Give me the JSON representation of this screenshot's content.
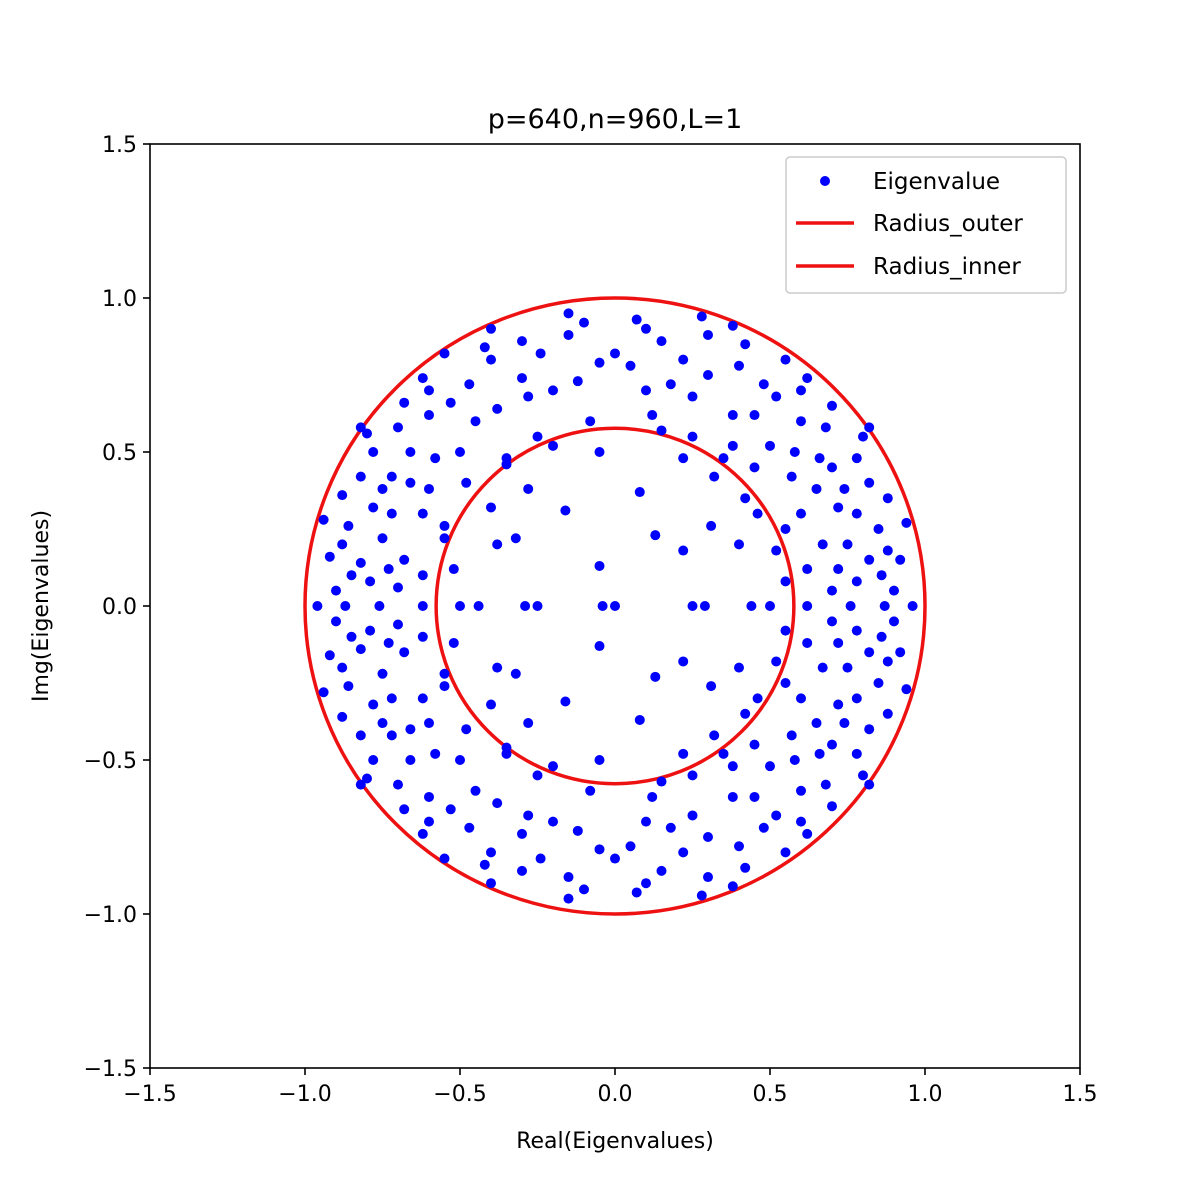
{
  "chart_data": {
    "type": "scatter",
    "title": "p=640,n=960,L=1",
    "xlabel": "Real(Eigenvalues)",
    "ylabel": "Img(Eigenvalues)",
    "xlim": [
      -1.5,
      1.5
    ],
    "ylim": [
      -1.5,
      1.5
    ],
    "xticks": [
      "−1.5",
      "−1.0",
      "−0.5",
      "0.0",
      "0.5",
      "1.0",
      "1.5"
    ],
    "yticks": [
      "1.5",
      "1.0",
      "0.5",
      "0.0",
      "−0.5",
      "−1.0",
      "−1.5"
    ],
    "xtick_values": [
      -1.5,
      -1.0,
      -0.5,
      0.0,
      0.5,
      1.0,
      1.5
    ],
    "ytick_values": [
      1.5,
      1.0,
      0.5,
      0.0,
      -0.5,
      -1.0,
      -1.5
    ],
    "grid": false,
    "legend_position": "top-right",
    "series": [
      {
        "name": "Eigenvalue",
        "kind": "points",
        "color": "#0000ff",
        "points": [
          [
            0.0,
            0.0
          ],
          [
            -0.04,
            0.0
          ],
          [
            0.96,
            0.0
          ],
          [
            -0.96,
            0.0
          ],
          [
            0.25,
            0.0
          ],
          [
            -0.25,
            0.0
          ],
          [
            0.29,
            0.0
          ],
          [
            -0.29,
            0.0
          ],
          [
            0.44,
            0.0
          ],
          [
            -0.44,
            0.0
          ],
          [
            0.5,
            0.0
          ],
          [
            -0.5,
            0.0
          ],
          [
            0.62,
            0.0
          ],
          [
            -0.62,
            0.0
          ],
          [
            0.76,
            0.0
          ],
          [
            -0.76,
            0.0
          ],
          [
            0.87,
            0.0
          ],
          [
            -0.87,
            0.0
          ],
          [
            -0.05,
            0.13
          ],
          [
            -0.05,
            -0.13
          ],
          [
            0.13,
            0.23
          ],
          [
            0.13,
            -0.23
          ],
          [
            0.22,
            0.18
          ],
          [
            0.22,
            -0.18
          ],
          [
            0.31,
            0.26
          ],
          [
            0.31,
            -0.26
          ],
          [
            -0.16,
            0.31
          ],
          [
            -0.16,
            -0.31
          ],
          [
            0.08,
            0.37
          ],
          [
            0.08,
            -0.37
          ],
          [
            0.4,
            0.2
          ],
          [
            0.4,
            -0.2
          ],
          [
            -0.32,
            0.22
          ],
          [
            -0.32,
            -0.22
          ],
          [
            -0.38,
            0.2
          ],
          [
            -0.38,
            -0.2
          ],
          [
            0.46,
            0.3
          ],
          [
            0.46,
            -0.3
          ],
          [
            -0.2,
            0.52
          ],
          [
            -0.2,
            -0.52
          ],
          [
            0.15,
            0.57
          ],
          [
            0.15,
            -0.57
          ],
          [
            -0.05,
            0.5
          ],
          [
            -0.05,
            -0.5
          ],
          [
            0.22,
            0.48
          ],
          [
            0.22,
            -0.48
          ],
          [
            0.52,
            0.18
          ],
          [
            0.52,
            -0.18
          ],
          [
            0.55,
            0.08
          ],
          [
            0.55,
            -0.08
          ],
          [
            -0.52,
            0.12
          ],
          [
            -0.52,
            -0.12
          ],
          [
            -0.55,
            0.22
          ],
          [
            -0.55,
            -0.22
          ],
          [
            0.38,
            0.52
          ],
          [
            0.38,
            -0.52
          ],
          [
            -0.35,
            0.48
          ],
          [
            -0.35,
            -0.48
          ],
          [
            0.57,
            0.42
          ],
          [
            0.57,
            -0.42
          ],
          [
            -0.6,
            0.38
          ],
          [
            -0.6,
            -0.38
          ],
          [
            0.67,
            0.2
          ],
          [
            0.67,
            -0.2
          ],
          [
            -0.68,
            0.15
          ],
          [
            -0.68,
            -0.15
          ],
          [
            0.6,
            0.3
          ],
          [
            0.6,
            -0.3
          ],
          [
            -0.62,
            0.3
          ],
          [
            -0.62,
            -0.3
          ],
          [
            0.45,
            0.62
          ],
          [
            0.45,
            -0.62
          ],
          [
            -0.45,
            0.6
          ],
          [
            -0.45,
            -0.6
          ],
          [
            0.1,
            0.7
          ],
          [
            0.1,
            -0.7
          ],
          [
            -0.12,
            0.73
          ],
          [
            -0.12,
            -0.73
          ],
          [
            0.25,
            0.68
          ],
          [
            0.25,
            -0.68
          ],
          [
            -0.28,
            0.68
          ],
          [
            -0.28,
            -0.68
          ],
          [
            0.7,
            0.45
          ],
          [
            0.7,
            -0.45
          ],
          [
            -0.72,
            0.42
          ],
          [
            -0.72,
            -0.42
          ],
          [
            0.78,
            0.3
          ],
          [
            0.78,
            -0.3
          ],
          [
            -0.78,
            0.32
          ],
          [
            -0.78,
            -0.32
          ],
          [
            0.82,
            0.15
          ],
          [
            0.82,
            -0.15
          ],
          [
            -0.82,
            0.14
          ],
          [
            -0.82,
            -0.14
          ],
          [
            0.6,
            0.6
          ],
          [
            0.6,
            -0.6
          ],
          [
            -0.6,
            0.62
          ],
          [
            -0.6,
            -0.62
          ],
          [
            0.4,
            0.78
          ],
          [
            0.4,
            -0.78
          ],
          [
            -0.4,
            0.8
          ],
          [
            -0.4,
            -0.8
          ],
          [
            0.15,
            0.86
          ],
          [
            0.15,
            -0.86
          ],
          [
            -0.15,
            0.88
          ],
          [
            -0.15,
            -0.88
          ],
          [
            0.0,
            0.82
          ],
          [
            0.0,
            -0.82
          ],
          [
            0.88,
            0.35
          ],
          [
            0.88,
            -0.35
          ],
          [
            -0.88,
            0.36
          ],
          [
            -0.88,
            -0.36
          ],
          [
            0.92,
            0.15
          ],
          [
            0.92,
            -0.15
          ],
          [
            -0.92,
            0.16
          ],
          [
            -0.92,
            -0.16
          ],
          [
            0.8,
            0.55
          ],
          [
            0.8,
            -0.55
          ],
          [
            -0.8,
            0.56
          ],
          [
            -0.8,
            -0.56
          ],
          [
            0.62,
            0.74
          ],
          [
            0.62,
            -0.74
          ],
          [
            -0.62,
            0.74
          ],
          [
            -0.62,
            -0.74
          ],
          [
            0.38,
            0.91
          ],
          [
            0.38,
            -0.91
          ],
          [
            -0.4,
            0.9
          ],
          [
            -0.4,
            -0.9
          ],
          [
            0.28,
            0.94
          ],
          [
            0.28,
            -0.94
          ],
          [
            -0.15,
            0.95
          ],
          [
            -0.15,
            -0.95
          ],
          [
            0.07,
            0.93
          ],
          [
            0.07,
            -0.93
          ],
          [
            0.32,
            0.42
          ],
          [
            0.32,
            -0.42
          ],
          [
            -0.28,
            0.38
          ],
          [
            -0.28,
            -0.38
          ],
          [
            0.45,
            0.45
          ],
          [
            0.45,
            -0.45
          ],
          [
            -0.48,
            0.4
          ],
          [
            -0.48,
            -0.4
          ],
          [
            0.5,
            0.52
          ],
          [
            0.5,
            -0.52
          ],
          [
            -0.5,
            0.5
          ],
          [
            -0.5,
            -0.5
          ],
          [
            0.12,
            0.62
          ],
          [
            0.12,
            -0.62
          ],
          [
            -0.08,
            0.6
          ],
          [
            -0.08,
            -0.6
          ],
          [
            0.62,
            0.12
          ],
          [
            0.62,
            -0.12
          ],
          [
            -0.62,
            0.1
          ],
          [
            -0.62,
            -0.1
          ],
          [
            0.7,
            0.05
          ],
          [
            0.7,
            -0.05
          ],
          [
            -0.7,
            0.06
          ],
          [
            -0.7,
            -0.06
          ],
          [
            0.52,
            0.68
          ],
          [
            0.52,
            -0.68
          ],
          [
            -0.53,
            0.66
          ],
          [
            -0.53,
            -0.66
          ],
          [
            0.3,
            0.75
          ],
          [
            0.3,
            -0.75
          ],
          [
            -0.3,
            0.74
          ],
          [
            -0.3,
            -0.74
          ],
          [
            0.72,
            0.32
          ],
          [
            0.72,
            -0.32
          ],
          [
            -0.72,
            0.3
          ],
          [
            -0.72,
            -0.3
          ],
          [
            0.75,
            0.2
          ],
          [
            0.75,
            -0.2
          ],
          [
            -0.75,
            0.22
          ],
          [
            -0.75,
            -0.22
          ],
          [
            0.68,
            0.58
          ],
          [
            0.68,
            -0.58
          ],
          [
            -0.7,
            0.58
          ],
          [
            -0.7,
            -0.58
          ],
          [
            0.22,
            0.8
          ],
          [
            0.22,
            -0.8
          ],
          [
            -0.24,
            0.82
          ],
          [
            -0.24,
            -0.82
          ],
          [
            0.85,
            0.25
          ],
          [
            0.85,
            -0.25
          ],
          [
            -0.86,
            0.26
          ],
          [
            -0.86,
            -0.26
          ],
          [
            0.9,
            0.05
          ],
          [
            0.9,
            -0.05
          ],
          [
            -0.9,
            0.05
          ],
          [
            -0.9,
            -0.05
          ],
          [
            0.78,
            0.48
          ],
          [
            0.78,
            -0.48
          ],
          [
            -0.78,
            0.5
          ],
          [
            -0.78,
            -0.5
          ],
          [
            0.55,
            0.8
          ],
          [
            0.55,
            -0.8
          ],
          [
            -0.55,
            0.82
          ],
          [
            -0.55,
            -0.82
          ],
          [
            0.48,
            0.72
          ],
          [
            0.48,
            -0.72
          ],
          [
            -0.47,
            0.72
          ],
          [
            -0.47,
            -0.72
          ],
          [
            0.05,
            0.78
          ],
          [
            0.05,
            -0.78
          ],
          [
            -0.05,
            0.79
          ],
          [
            -0.05,
            -0.79
          ],
          [
            0.38,
            0.62
          ],
          [
            0.38,
            -0.62
          ],
          [
            -0.38,
            0.64
          ],
          [
            -0.38,
            -0.64
          ],
          [
            0.65,
            0.38
          ],
          [
            0.65,
            -0.38
          ],
          [
            -0.66,
            0.4
          ],
          [
            -0.66,
            -0.4
          ],
          [
            0.58,
            0.5
          ],
          [
            0.58,
            -0.5
          ],
          [
            -0.58,
            0.48
          ],
          [
            -0.58,
            -0.48
          ],
          [
            0.18,
            0.72
          ],
          [
            0.18,
            -0.72
          ],
          [
            -0.2,
            0.7
          ],
          [
            -0.2,
            -0.7
          ],
          [
            0.72,
            0.12
          ],
          [
            0.72,
            -0.12
          ],
          [
            -0.73,
            0.12
          ],
          [
            -0.73,
            -0.12
          ],
          [
            0.82,
            0.4
          ],
          [
            0.82,
            -0.4
          ],
          [
            -0.82,
            0.42
          ],
          [
            -0.82,
            -0.42
          ],
          [
            0.42,
            0.85
          ],
          [
            0.42,
            -0.85
          ],
          [
            -0.42,
            0.84
          ],
          [
            -0.42,
            -0.84
          ],
          [
            0.7,
            0.65
          ],
          [
            0.7,
            -0.65
          ],
          [
            -0.68,
            0.66
          ],
          [
            -0.68,
            -0.66
          ],
          [
            0.3,
            0.88
          ],
          [
            0.3,
            -0.88
          ],
          [
            -0.3,
            0.86
          ],
          [
            -0.3,
            -0.86
          ],
          [
            0.88,
            0.18
          ],
          [
            0.88,
            -0.18
          ],
          [
            -0.88,
            0.2
          ],
          [
            -0.88,
            -0.2
          ],
          [
            0.94,
            0.27
          ],
          [
            0.94,
            -0.27
          ],
          [
            -0.94,
            0.28
          ],
          [
            -0.94,
            -0.28
          ],
          [
            0.42,
            0.35
          ],
          [
            0.42,
            -0.35
          ],
          [
            -0.4,
            0.32
          ],
          [
            -0.4,
            -0.32
          ],
          [
            0.35,
            0.48
          ],
          [
            0.35,
            -0.48
          ],
          [
            -0.35,
            0.46
          ],
          [
            -0.35,
            -0.46
          ],
          [
            0.25,
            0.55
          ],
          [
            0.25,
            -0.55
          ],
          [
            -0.25,
            0.55
          ],
          [
            -0.25,
            -0.55
          ],
          [
            0.55,
            0.25
          ],
          [
            0.55,
            -0.25
          ],
          [
            -0.55,
            0.26
          ],
          [
            -0.55,
            -0.26
          ],
          [
            0.66,
            0.48
          ],
          [
            0.66,
            -0.48
          ],
          [
            -0.66,
            0.5
          ],
          [
            -0.66,
            -0.5
          ],
          [
            0.78,
            0.08
          ],
          [
            0.78,
            -0.08
          ],
          [
            -0.79,
            0.08
          ],
          [
            -0.79,
            -0.08
          ],
          [
            0.1,
            0.9
          ],
          [
            0.1,
            -0.9
          ],
          [
            -0.1,
            0.92
          ],
          [
            -0.1,
            -0.92
          ],
          [
            0.6,
            0.7
          ],
          [
            0.6,
            -0.7
          ],
          [
            -0.6,
            0.7
          ],
          [
            -0.6,
            -0.7
          ],
          [
            0.82,
            0.58
          ],
          [
            0.82,
            -0.58
          ],
          [
            -0.82,
            0.58
          ],
          [
            -0.82,
            -0.58
          ],
          [
            0.74,
            0.38
          ],
          [
            0.74,
            -0.38
          ],
          [
            -0.75,
            0.38
          ],
          [
            -0.75,
            -0.38
          ],
          [
            0.86,
            0.1
          ],
          [
            0.86,
            -0.1
          ],
          [
            -0.85,
            0.1
          ],
          [
            -0.85,
            -0.1
          ]
        ]
      },
      {
        "name": "Radius_outer",
        "kind": "circle",
        "color": "#ee1111",
        "radius": 1.0
      },
      {
        "name": "Radius_inner",
        "kind": "circle",
        "color": "#ee1111",
        "radius": 0.577
      }
    ]
  }
}
